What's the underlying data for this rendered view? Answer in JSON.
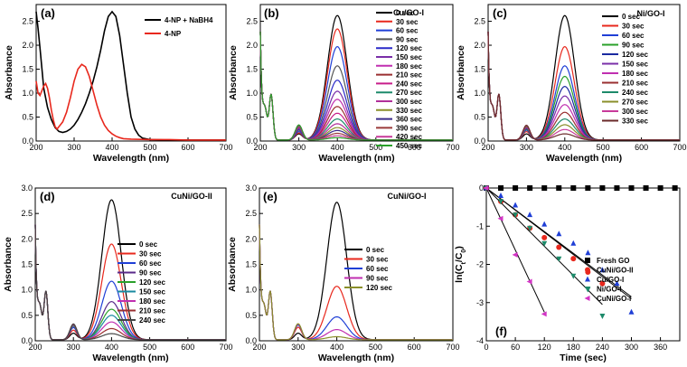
{
  "chart_data": [
    {
      "panel": "(a)",
      "type": "line",
      "title": "",
      "xlabel": "Wavelength (nm)",
      "ylabel": "Absorbance",
      "xlim": [
        200,
        700
      ],
      "ylim": [
        0,
        2.85
      ],
      "xticks": [
        200,
        300,
        400,
        500,
        600,
        700
      ],
      "yticks": [
        0.0,
        0.5,
        1.0,
        1.5,
        2.0,
        2.5
      ],
      "legend_position": "top-right",
      "series": [
        {
          "name": "4-NP + NaBH4",
          "color": "#000000",
          "x": [
            200,
            205,
            210,
            220,
            230,
            240,
            250,
            260,
            270,
            280,
            290,
            300,
            310,
            320,
            330,
            340,
            350,
            360,
            370,
            380,
            390,
            400,
            410,
            420,
            430,
            440,
            450,
            460,
            470,
            480,
            500,
            550,
            600,
            650,
            700
          ],
          "y": [
            2.7,
            2.35,
            1.95,
            1.1,
            0.7,
            0.45,
            0.28,
            0.2,
            0.18,
            0.2,
            0.25,
            0.33,
            0.45,
            0.6,
            0.78,
            1.0,
            1.25,
            1.55,
            1.9,
            2.3,
            2.6,
            2.7,
            2.6,
            2.2,
            1.6,
            1.0,
            0.5,
            0.25,
            0.12,
            0.06,
            0.03,
            0.02,
            0.02,
            0.02,
            0.02
          ]
        },
        {
          "name": "4-NP",
          "color": "#e8281d",
          "x": [
            200,
            205,
            210,
            215,
            220,
            225,
            230,
            235,
            240,
            245,
            250,
            255,
            260,
            265,
            270,
            280,
            290,
            300,
            310,
            320,
            330,
            340,
            350,
            360,
            370,
            380,
            390,
            400,
            410,
            420,
            430,
            450,
            500,
            550,
            600,
            650,
            700
          ],
          "y": [
            1.25,
            1.0,
            0.95,
            1.05,
            1.15,
            1.2,
            1.1,
            0.9,
            0.65,
            0.45,
            0.3,
            0.25,
            0.3,
            0.35,
            0.4,
            0.6,
            0.9,
            1.25,
            1.5,
            1.6,
            1.55,
            1.35,
            1.05,
            0.75,
            0.5,
            0.33,
            0.22,
            0.15,
            0.1,
            0.07,
            0.05,
            0.04,
            0.03,
            0.03,
            0.02,
            0.02,
            0.02
          ]
        }
      ]
    },
    {
      "panel": "(b)",
      "type": "line",
      "title": "Cu/GO-I",
      "xlabel": "Wavelength (nm)",
      "ylabel": "Absorbance",
      "xlim": [
        200,
        700
      ],
      "ylim": [
        0,
        2.85
      ],
      "xticks": [
        200,
        300,
        400,
        500,
        600,
        700
      ],
      "yticks": [
        0.0,
        0.5,
        1.0,
        1.5,
        2.0,
        2.5
      ],
      "legend_position": "top-right",
      "series": [
        {
          "name": "0 sec",
          "color": "#000000",
          "peak": 2.6
        },
        {
          "name": "30 sec",
          "color": "#e8281d",
          "peak": 2.32
        },
        {
          "name": "60 sec",
          "color": "#1f3fd6",
          "peak": 1.95
        },
        {
          "name": "90 sec",
          "color": "#555555",
          "peak": 1.55
        },
        {
          "name": "120 sec",
          "color": "#2a2ac8",
          "peak": 1.25
        },
        {
          "name": "150 sec",
          "color": "#7a2fa8",
          "peak": 1.02
        },
        {
          "name": "180 sec",
          "color": "#c02fb0",
          "peak": 0.85
        },
        {
          "name": "210 sec",
          "color": "#9a2f30",
          "peak": 0.7
        },
        {
          "name": "240 sec",
          "color": "#c81e8a",
          "peak": 0.56
        },
        {
          "name": "270 sec",
          "color": "#1d8a6a",
          "peak": 0.44
        },
        {
          "name": "300 sec",
          "color": "#b0309a",
          "peak": 0.34
        },
        {
          "name": "330 sec",
          "color": "#8a8f2a",
          "peak": 0.26
        },
        {
          "name": "360 sec",
          "color": "#3a2a8a",
          "peak": 0.2
        },
        {
          "name": "390 sec",
          "color": "#9a3a3a",
          "peak": 0.14
        },
        {
          "name": "420 sec",
          "color": "#c83a9a",
          "peak": 0.09
        },
        {
          "name": "450 sec",
          "color": "#2aa02a",
          "peak": 0.05
        }
      ]
    },
    {
      "panel": "(c)",
      "type": "line",
      "title": "Ni/GO-I",
      "xlabel": "Wavelength (nm)",
      "ylabel": "Absorbance",
      "xlim": [
        200,
        700
      ],
      "ylim": [
        0,
        2.85
      ],
      "xticks": [
        200,
        300,
        400,
        500,
        600,
        700
      ],
      "yticks": [
        0.0,
        0.5,
        1.0,
        1.5,
        2.0,
        2.5
      ],
      "legend_position": "top-right",
      "series": [
        {
          "name": "0 sec",
          "color": "#000000",
          "peak": 2.6
        },
        {
          "name": "30 sec",
          "color": "#e8281d",
          "peak": 1.95
        },
        {
          "name": "60 sec",
          "color": "#1f3fd6",
          "peak": 1.55
        },
        {
          "name": "90 sec",
          "color": "#2aa02a",
          "peak": 1.33
        },
        {
          "name": "120 sec",
          "color": "#1a2aa0",
          "peak": 1.12
        },
        {
          "name": "150 sec",
          "color": "#7a2fa8",
          "peak": 0.92
        },
        {
          "name": "180 sec",
          "color": "#c02fb0",
          "peak": 0.74
        },
        {
          "name": "210 sec",
          "color": "#9a2f30",
          "peak": 0.58
        },
        {
          "name": "240 sec",
          "color": "#1d8a6a",
          "peak": 0.44
        },
        {
          "name": "270 sec",
          "color": "#8a8f2a",
          "peak": 0.32
        },
        {
          "name": "300 sec",
          "color": "#c83a9a",
          "peak": 0.22
        },
        {
          "name": "330 sec",
          "color": "#6a2a2a",
          "peak": 0.13
        }
      ]
    },
    {
      "panel": "(d)",
      "type": "line",
      "title": "CuNi/GO-II",
      "xlabel": "Wavelength (nm)",
      "ylabel": "Absorbance",
      "xlim": [
        200,
        700
      ],
      "ylim": [
        0,
        3.0
      ],
      "xticks": [
        200,
        300,
        400,
        500,
        600,
        700
      ],
      "yticks": [
        0.0,
        0.5,
        1.0,
        1.5,
        2.0,
        2.5,
        3.0
      ],
      "legend_position": "center-right",
      "series": [
        {
          "name": "0 sec",
          "color": "#000000",
          "peak": 2.75
        },
        {
          "name": "30 sec",
          "color": "#e8281d",
          "peak": 1.88
        },
        {
          "name": "60 sec",
          "color": "#1f3fd6",
          "peak": 1.15
        },
        {
          "name": "90 sec",
          "color": "#5a2a8a",
          "peak": 0.75
        },
        {
          "name": "120 sec",
          "color": "#2aa02a",
          "peak": 0.6
        },
        {
          "name": "150 sec",
          "color": "#1a8aa0",
          "peak": 0.48
        },
        {
          "name": "180 sec",
          "color": "#c02fb0",
          "peak": 0.35
        },
        {
          "name": "210 sec",
          "color": "#9a2f30",
          "peak": 0.22
        },
        {
          "name": "240 sec",
          "color": "#444444",
          "peak": 0.12
        }
      ]
    },
    {
      "panel": "(e)",
      "type": "line",
      "title": "CuNi/GO-I",
      "xlabel": "Wavelength (nm)",
      "ylabel": "Absorbance",
      "xlim": [
        200,
        700
      ],
      "ylim": [
        0,
        3.0
      ],
      "xticks": [
        200,
        300,
        400,
        500,
        600,
        700
      ],
      "yticks": [
        0.0,
        0.5,
        1.0,
        1.5,
        2.0,
        2.5,
        3.0
      ],
      "legend_position": "center-right",
      "series": [
        {
          "name": "0 sec",
          "color": "#000000",
          "peak": 2.7
        },
        {
          "name": "30 sec",
          "color": "#e8281d",
          "peak": 1.05
        },
        {
          "name": "60 sec",
          "color": "#1f3fd6",
          "peak": 0.45
        },
        {
          "name": "90 sec",
          "color": "#c02fb0",
          "peak": 0.2
        },
        {
          "name": "120 sec",
          "color": "#8a8f2a",
          "peak": 0.06
        }
      ]
    },
    {
      "panel": "(f)",
      "type": "scatter",
      "title": "",
      "xlabel": "Time (sec)",
      "ylabel": "ln(Ct/C0)",
      "ylabel_main": "ln(C",
      "ylabel_sub1": "t",
      "ylabel_mid": "/C",
      "ylabel_sub2": "0",
      "ylabel_end": ")",
      "xlim": [
        0,
        400
      ],
      "ylim": [
        -4,
        0
      ],
      "xticks": [
        0,
        60,
        120,
        180,
        240,
        300,
        360
      ],
      "yticks": [
        0,
        -1,
        -2,
        -3,
        -4
      ],
      "legend_position": "center-right",
      "series": [
        {
          "name": "Fresh GO",
          "color": "#000000",
          "marker": "square",
          "x": [
            0,
            30,
            60,
            90,
            120,
            150,
            180,
            210,
            240,
            270,
            300,
            330,
            360,
            390
          ],
          "y": [
            0,
            0,
            0,
            0,
            0,
            0,
            0,
            0,
            0,
            0,
            0,
            0,
            0,
            0
          ],
          "fit": [
            0,
            390,
            0,
            0
          ]
        },
        {
          "name": "CuNi/GO-II",
          "color": "#e8281d",
          "marker": "circle",
          "x": [
            0,
            30,
            60,
            90,
            120,
            150,
            180,
            210,
            240
          ],
          "y": [
            0,
            -0.35,
            -0.7,
            -1.05,
            -1.3,
            -1.55,
            -1.85,
            -2.2,
            -2.5
          ],
          "fit": [
            0,
            300,
            0,
            -2.85
          ]
        },
        {
          "name": "Cu/GO-I",
          "color": "#1f3fd6",
          "marker": "triangle",
          "x": [
            0,
            30,
            60,
            90,
            120,
            150,
            180,
            210,
            240,
            270,
            300
          ],
          "y": [
            0,
            -0.2,
            -0.45,
            -0.7,
            -0.95,
            -1.2,
            -1.45,
            -1.7,
            -2.15,
            -2.5,
            -3.25
          ],
          "fit": [
            0,
            300,
            0,
            -2.9
          ]
        },
        {
          "name": "Ni/GO-I",
          "color": "#1d8a6a",
          "marker": "triangle-down",
          "x": [
            0,
            30,
            60,
            90,
            120,
            150,
            180,
            210,
            240
          ],
          "y": [
            0,
            -0.35,
            -0.7,
            -1.05,
            -1.45,
            -1.85,
            -2.3,
            -2.65,
            -3.35
          ],
          "fit": [
            0,
            240,
            0,
            -3.05
          ]
        },
        {
          "name": "CuNi/GO-I",
          "color": "#d335c5",
          "marker": "triangle-left",
          "x": [
            0,
            30,
            60,
            90,
            120
          ],
          "y": [
            0,
            -0.8,
            -1.75,
            -2.45,
            -3.3
          ],
          "fit": [
            0,
            120,
            0,
            -3.25
          ]
        }
      ]
    }
  ]
}
